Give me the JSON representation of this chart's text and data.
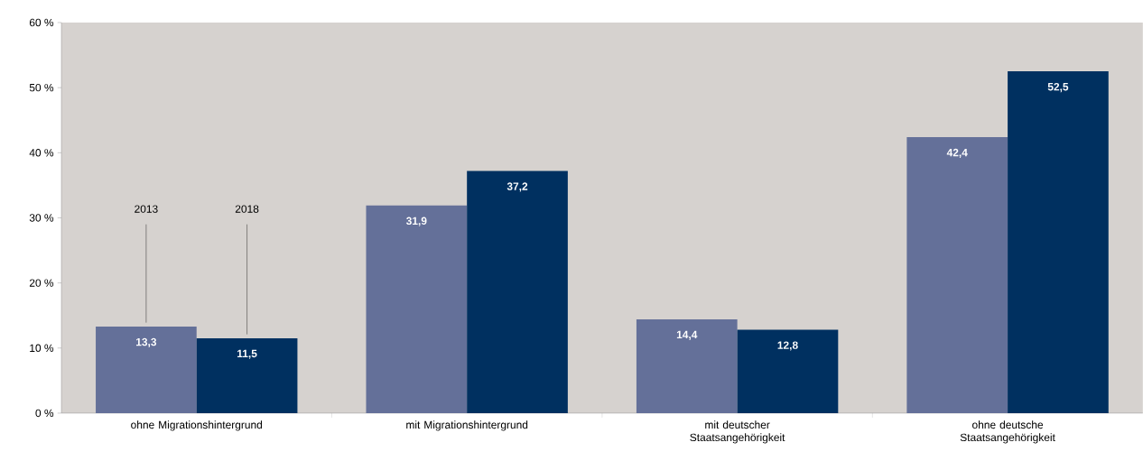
{
  "chart_data": {
    "type": "bar",
    "categories": [
      "ohne Migrationshintergrund",
      "mit Migrationshintergrund",
      "mit deutscher Staatsangehörigkeit",
      "ohne deutsche Staatsangehörigkeit"
    ],
    "series": [
      {
        "name": "2013",
        "color": "#647099",
        "values": [
          13.3,
          31.9,
          14.4,
          42.4
        ],
        "value_labels": [
          "13,3",
          "31,9",
          "14,4",
          "42,4"
        ]
      },
      {
        "name": "2018",
        "color": "#003060",
        "values": [
          11.5,
          37.2,
          12.8,
          52.5
        ],
        "value_labels": [
          "11,5",
          "37,2",
          "12,8",
          "52,5"
        ]
      }
    ],
    "ylim": [
      0,
      60
    ],
    "yticks": [
      {
        "value": 0,
        "label": "0 %"
      },
      {
        "value": 10,
        "label": "10 %"
      },
      {
        "value": 20,
        "label": "20 %"
      },
      {
        "value": 30,
        "label": "30 %"
      },
      {
        "value": 40,
        "label": "40 %"
      },
      {
        "value": 50,
        "label": "50 %"
      },
      {
        "value": 60,
        "label": "60 %"
      }
    ],
    "grid": false
  }
}
